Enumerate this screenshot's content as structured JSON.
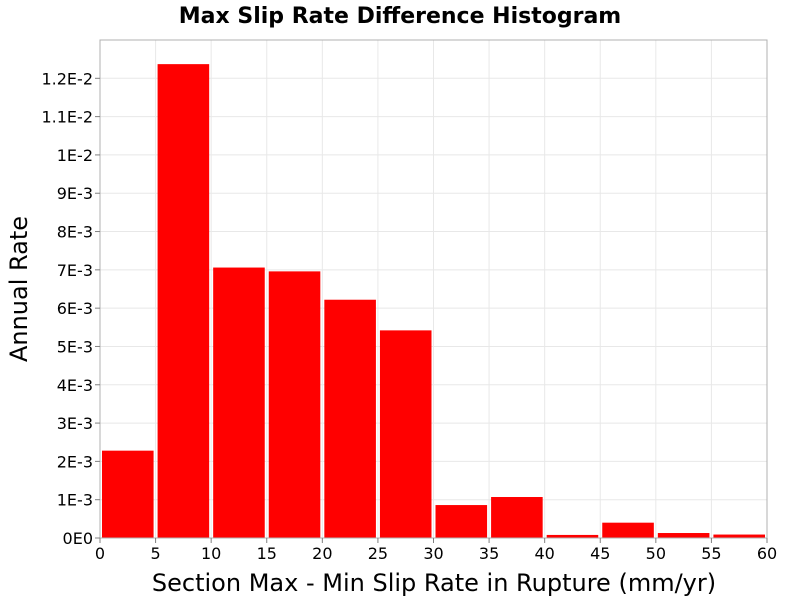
{
  "chart_data": {
    "type": "bar",
    "title": "Max Slip Rate Difference Histogram",
    "xlabel": "Section Max - Min Slip Rate in Rupture (mm/yr)",
    "ylabel": "Annual Rate",
    "xlim": [
      0,
      60
    ],
    "ylim": [
      0,
      0.013
    ],
    "bin_width": 5,
    "grid": true,
    "legend": "none",
    "x_ticks": [
      0,
      5,
      10,
      15,
      20,
      25,
      30,
      35,
      40,
      45,
      50,
      55,
      60
    ],
    "x_tick_labels": [
      "0",
      "5",
      "10",
      "15",
      "20",
      "25",
      "30",
      "35",
      "40",
      "45",
      "50",
      "55",
      "60"
    ],
    "y_ticks": [
      0,
      0.001,
      0.002,
      0.003,
      0.004,
      0.005,
      0.006,
      0.007,
      0.008,
      0.009,
      0.01,
      0.011,
      0.012
    ],
    "y_tick_labels": [
      "0E0",
      "1E-3",
      "2E-3",
      "3E-3",
      "4E-3",
      "5E-3",
      "6E-3",
      "7E-3",
      "8E-3",
      "9E-3",
      "1E-2",
      "1.1E-2",
      "1.2E-2"
    ],
    "bin_starts": [
      0,
      5,
      10,
      15,
      20,
      25,
      30,
      35,
      40,
      45,
      50,
      55
    ],
    "values": [
      0.00228,
      0.01237,
      0.00706,
      0.00696,
      0.00622,
      0.00542,
      0.00086,
      0.00107,
      8e-05,
      0.0004,
      0.00013,
      9e-05
    ],
    "bar_color": "#ff0000"
  }
}
